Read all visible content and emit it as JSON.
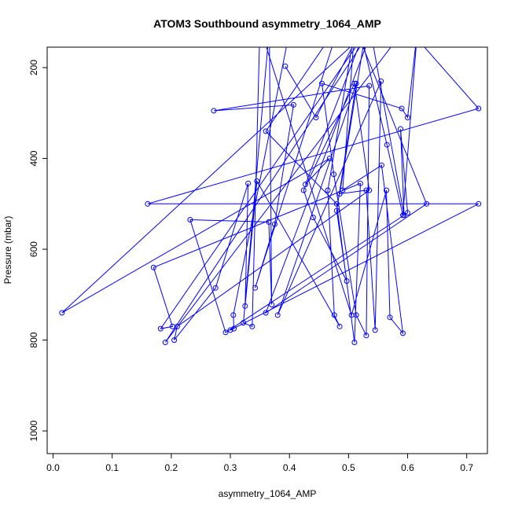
{
  "chart_data": {
    "type": "line",
    "title": "ATOM3 Southbound asymmetry_1064_AMP",
    "xlabel": "asymmetry_1064_AMP",
    "ylabel": "Pressure (mbar)",
    "xlim": [
      -0.01,
      0.735
    ],
    "ylim": [
      1050,
      155
    ],
    "y_reversed": true,
    "x_ticks": [
      0.0,
      0.1,
      0.2,
      0.3,
      0.4,
      0.5,
      0.6,
      0.7
    ],
    "x_tick_labels": [
      "0.0",
      "0.1",
      "0.2",
      "0.3",
      "0.4",
      "0.5",
      "0.6",
      "0.7"
    ],
    "y_ticks": [
      200,
      400,
      600,
      800,
      1000
    ],
    "y_tick_labels": [
      "200",
      "400",
      "600",
      "800",
      "1000"
    ],
    "grid": false,
    "series": [
      {
        "color": "#0000ff",
        "marker": "open-circle",
        "x": [
          0.393,
          0.445,
          0.52,
          0.565,
          0.592,
          0.617,
          0.6,
          0.59,
          0.455,
          0.475,
          0.513,
          0.53,
          0.535,
          0.272,
          0.407,
          0.375,
          0.342,
          0.483,
          0.46,
          0.36,
          0.48,
          0.51,
          0.52,
          0.17,
          0.202,
          0.182,
          0.52,
          0.632,
          0.36,
          0.542,
          0.19,
          0.598,
          0.72,
          0.16,
          0.72,
          0.3,
          0.306,
          0.305,
          0.4,
          0.54,
          0.015,
          0.468,
          0.427,
          0.53,
          0.485,
          0.53,
          0.545,
          0.555,
          0.38,
          0.513,
          0.48,
          0.497,
          0.44,
          0.424,
          0.51,
          0.535,
          0.21,
          0.205,
          0.275,
          0.33,
          0.325,
          0.345,
          0.485,
          0.476,
          0.465,
          0.51,
          0.49,
          0.556,
          0.592,
          0.57,
          0.564,
          0.505,
          0.35,
          0.337,
          0.322,
          0.366,
          0.37,
          0.365,
          0.232,
          0.292,
          0.6,
          0.588,
          0.594,
          0.536
        ],
        "y": [
          197,
          310,
          120,
          370,
          525,
          110,
          310,
          290,
          235,
          435,
          745,
          790,
          240,
          295,
          282,
          545,
          685,
          110,
          150,
          340,
          500,
          805,
          455,
          640,
          770,
          775,
          140,
          500,
          740,
          110,
          805,
          110,
          290,
          500,
          500,
          778,
          775,
          745,
          120,
          110,
          740,
          400,
          457,
          110,
          478,
          470,
          778,
          230,
          745,
          235,
          515,
          670,
          530,
          470,
          235,
          470,
          770,
          800,
          685,
          455,
          725,
          450,
          770,
          745,
          470,
          120,
          470,
          415,
          785,
          750,
          470,
          745,
          110,
          770,
          762,
          115,
          722,
          540,
          535,
          783,
          520,
          335,
          525,
          110
        ]
      }
    ]
  }
}
